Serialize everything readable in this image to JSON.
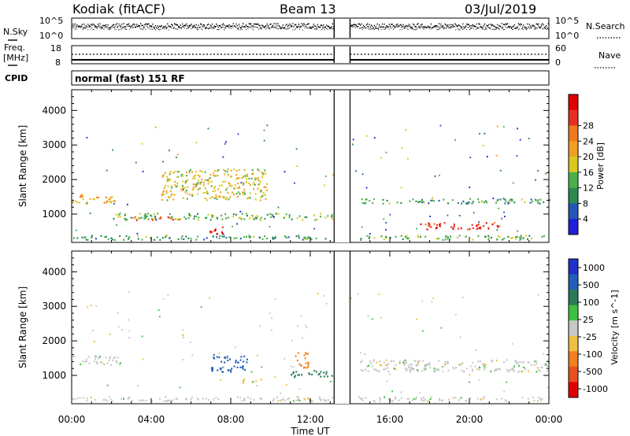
{
  "header": {
    "station": "Kodiak (fitACF)",
    "beam": "Beam 13",
    "date": "03/Jul/2019"
  },
  "strips": {
    "nsky_label": "N.Sky",
    "nsearch_label": "N.Search",
    "nsky_ticks": [
      "10^5",
      "10^0"
    ],
    "nsearch_ticks": [
      "10^5",
      "10^0"
    ],
    "freq_label_1": "Freq.",
    "freq_label_2": "[MHz]",
    "freq_ticks": [
      "18",
      "8"
    ],
    "nave_label": "Nave",
    "nave_ticks": [
      "60",
      "0"
    ],
    "cpid_label": "CPID",
    "cpid_text": "normal (fast) 151 RF"
  },
  "axes": {
    "ylabel": "Slant Range [km]",
    "xlabel": "Time UT",
    "yticks": [
      "1000",
      "2000",
      "3000",
      "4000"
    ],
    "xticks": [
      "00:00",
      "04:00",
      "08:00",
      "12:00",
      "16:00",
      "20:00",
      "00:00"
    ]
  },
  "colors": {
    "power": [
      "#2020d8",
      "#2456b8",
      "#2a8a50",
      "#4bb04b",
      "#d8c820",
      "#f0a020",
      "#f07820",
      "#e83020",
      "#e00000"
    ],
    "velocity": [
      "#2030c8",
      "#2060b8",
      "#2a7a5a",
      "#40c040",
      "#c8c8c8",
      "#f0c040",
      "#f08020",
      "#e85020",
      "#e00000"
    ]
  },
  "chart_data": [
    {
      "type": "heatmap",
      "title": "Power",
      "ylabel": "Slant Range [km]",
      "xlabel": "",
      "xlim_hours": [
        0,
        24
      ],
      "ylim_km": [
        180,
        4600
      ],
      "data_gap_hours": [
        13.2,
        14.0
      ],
      "colorbar": {
        "label": "Power [dB]",
        "ticks": [
          "4",
          "8",
          "12",
          "16",
          "20",
          "24",
          "28"
        ],
        "range": [
          0,
          30
        ]
      },
      "features": [
        {
          "t": [
            0.0,
            2.2
          ],
          "range_km": [
            1300,
            1560
          ],
          "value_db": 18
        },
        {
          "t": [
            2.0,
            13.2
          ],
          "range_km": [
            830,
            1020
          ],
          "value_db": 12
        },
        {
          "t": [
            3.0,
            5.5
          ],
          "range_km": [
            820,
            920
          ],
          "value_db": 22
        },
        {
          "t": [
            4.5,
            9.8
          ],
          "range_km": [
            1400,
            2300
          ],
          "value_db": 16
        },
        {
          "t": [
            6.8,
            7.6
          ],
          "range_km": [
            400,
            650
          ],
          "value_db": 28
        },
        {
          "t": [
            0.0,
            13.2
          ],
          "range_km": [
            250,
            380
          ],
          "value_db": 10
        },
        {
          "t": [
            14.0,
            24.0
          ],
          "range_km": [
            250,
            380
          ],
          "value_db": 12
        },
        {
          "t": [
            14.5,
            24.0
          ],
          "range_km": [
            1300,
            1450
          ],
          "value_db": 10
        },
        {
          "t": [
            17.5,
            21.5
          ],
          "range_km": [
            550,
            750
          ],
          "value_db": 26
        }
      ]
    },
    {
      "type": "heatmap",
      "title": "Velocity",
      "ylabel": "Slant Range [km]",
      "xlabel": "Time UT",
      "xlim_hours": [
        0,
        24
      ],
      "ylim_km": [
        180,
        4600
      ],
      "data_gap_hours": [
        13.2,
        14.0
      ],
      "colorbar": {
        "label": "Velocity [m s^-1]",
        "ticks": [
          "1000",
          "500",
          "100",
          "25",
          "-25",
          "-100",
          "-500",
          "-1000"
        ],
        "range": [
          -1000,
          1000
        ]
      },
      "features": [
        {
          "t": [
            0.0,
            2.5
          ],
          "range_km": [
            1300,
            1560
          ],
          "value_ms": 0
        },
        {
          "t": [
            7.0,
            8.8
          ],
          "range_km": [
            1100,
            1600
          ],
          "value_ms": 800
        },
        {
          "t": [
            11.2,
            11.9
          ],
          "range_km": [
            1200,
            1700
          ],
          "value_ms": -400
        },
        {
          "t": [
            11.0,
            13.2
          ],
          "range_km": [
            950,
            1150
          ],
          "value_ms": 150
        },
        {
          "t": [
            8.5,
            9.5
          ],
          "range_km": [
            750,
            900
          ],
          "value_ms": -60
        },
        {
          "t": [
            0.0,
            24.0
          ],
          "range_km": [
            250,
            380
          ],
          "value_ms": 0
        },
        {
          "t": [
            14.5,
            24.0
          ],
          "range_km": [
            1100,
            1450
          ],
          "value_ms": 0
        }
      ]
    }
  ]
}
